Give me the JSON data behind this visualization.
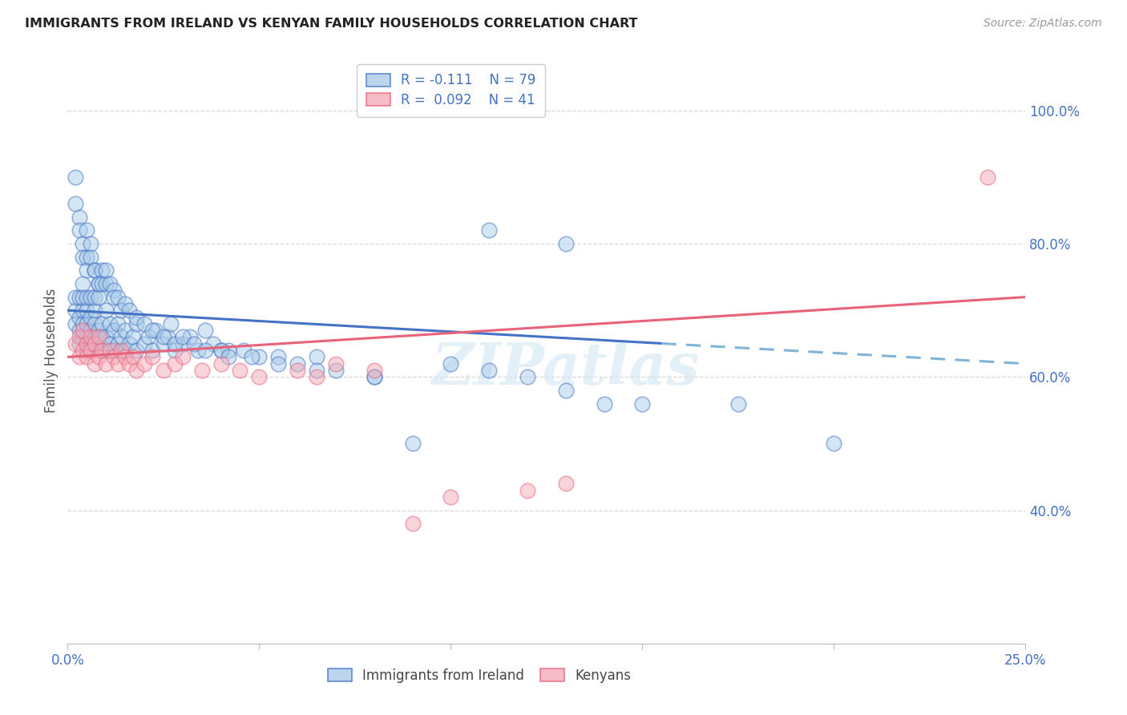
{
  "title": "IMMIGRANTS FROM IRELAND VS KENYAN FAMILY HOUSEHOLDS CORRELATION CHART",
  "source": "Source: ZipAtlas.com",
  "ylabel": "Family Households",
  "xlim": [
    0.0,
    0.25
  ],
  "ylim": [
    0.2,
    1.08
  ],
  "color_blue": "#aacce8",
  "color_pink": "#f4aab8",
  "trendline_blue_solid": "#4472c4",
  "trendline_blue_dashed": "#7fb3d8",
  "trendline_pink": "#e8637a",
  "background": "#ffffff",
  "watermark": "ZIPatlas",
  "grid_color": "#d8d8d8",
  "axis_color": "#4472c4",
  "ireland_x": [
    0.002,
    0.002,
    0.002,
    0.003,
    0.003,
    0.003,
    0.003,
    0.004,
    0.004,
    0.004,
    0.004,
    0.004,
    0.005,
    0.005,
    0.005,
    0.005,
    0.005,
    0.006,
    0.006,
    0.006,
    0.006,
    0.007,
    0.007,
    0.007,
    0.007,
    0.008,
    0.008,
    0.008,
    0.009,
    0.009,
    0.01,
    0.01,
    0.01,
    0.011,
    0.011,
    0.012,
    0.012,
    0.013,
    0.013,
    0.014,
    0.015,
    0.015,
    0.016,
    0.017,
    0.018,
    0.018,
    0.02,
    0.021,
    0.022,
    0.023,
    0.025,
    0.026,
    0.027,
    0.028,
    0.03,
    0.032,
    0.034,
    0.036,
    0.038,
    0.04,
    0.042,
    0.046,
    0.05,
    0.055,
    0.06,
    0.065,
    0.07,
    0.08,
    0.09,
    0.1,
    0.11,
    0.12,
    0.13,
    0.14,
    0.15,
    0.175,
    0.2,
    0.11,
    0.13
  ],
  "ireland_y": [
    0.68,
    0.7,
    0.72,
    0.65,
    0.67,
    0.69,
    0.72,
    0.66,
    0.68,
    0.7,
    0.72,
    0.74,
    0.64,
    0.66,
    0.68,
    0.7,
    0.72,
    0.65,
    0.67,
    0.69,
    0.72,
    0.66,
    0.68,
    0.7,
    0.72,
    0.65,
    0.67,
    0.72,
    0.66,
    0.68,
    0.64,
    0.66,
    0.7,
    0.65,
    0.68,
    0.64,
    0.67,
    0.65,
    0.68,
    0.66,
    0.64,
    0.67,
    0.65,
    0.66,
    0.64,
    0.68,
    0.65,
    0.66,
    0.64,
    0.67,
    0.65,
    0.66,
    0.68,
    0.64,
    0.65,
    0.66,
    0.64,
    0.67,
    0.65,
    0.64,
    0.64,
    0.64,
    0.63,
    0.63,
    0.62,
    0.63,
    0.61,
    0.6,
    0.5,
    0.62,
    0.61,
    0.6,
    0.58,
    0.56,
    0.56,
    0.56,
    0.5,
    0.82,
    0.8
  ],
  "ireland_y_high": [
    0.86,
    0.9,
    0.84,
    0.82,
    0.8,
    0.78,
    0.82,
    0.78,
    0.76,
    0.8,
    0.78,
    0.76,
    0.76,
    0.74,
    0.74,
    0.76,
    0.74,
    0.74,
    0.76,
    0.74,
    0.73,
    0.72,
    0.72,
    0.7,
    0.71,
    0.7,
    0.69,
    0.68,
    0.67,
    0.66,
    0.65,
    0.66,
    0.65,
    0.64,
    0.64,
    0.63,
    0.63,
    0.62,
    0.61,
    0.6
  ],
  "ireland_x_high": [
    0.002,
    0.002,
    0.003,
    0.003,
    0.004,
    0.004,
    0.005,
    0.005,
    0.005,
    0.006,
    0.006,
    0.007,
    0.007,
    0.008,
    0.008,
    0.009,
    0.009,
    0.01,
    0.01,
    0.011,
    0.012,
    0.012,
    0.013,
    0.014,
    0.015,
    0.016,
    0.018,
    0.02,
    0.022,
    0.025,
    0.028,
    0.03,
    0.033,
    0.036,
    0.04,
    0.042,
    0.048,
    0.055,
    0.065,
    0.08
  ],
  "kenya_x": [
    0.002,
    0.003,
    0.003,
    0.004,
    0.004,
    0.005,
    0.005,
    0.006,
    0.006,
    0.007,
    0.007,
    0.008,
    0.008,
    0.009,
    0.01,
    0.011,
    0.012,
    0.013,
    0.014,
    0.015,
    0.016,
    0.017,
    0.018,
    0.02,
    0.022,
    0.025,
    0.028,
    0.03,
    0.035,
    0.04,
    0.045,
    0.05,
    0.06,
    0.065,
    0.07,
    0.08,
    0.09,
    0.1,
    0.12,
    0.13,
    0.24
  ],
  "kenya_y": [
    0.65,
    0.66,
    0.63,
    0.64,
    0.67,
    0.65,
    0.63,
    0.66,
    0.64,
    0.62,
    0.65,
    0.63,
    0.66,
    0.64,
    0.62,
    0.64,
    0.63,
    0.62,
    0.64,
    0.63,
    0.62,
    0.63,
    0.61,
    0.62,
    0.63,
    0.61,
    0.62,
    0.63,
    0.61,
    0.62,
    0.61,
    0.6,
    0.61,
    0.6,
    0.62,
    0.61,
    0.38,
    0.42,
    0.43,
    0.44,
    0.9
  ],
  "trendline_blue_x0": 0.0,
  "trendline_blue_y0": 0.7,
  "trendline_blue_x1": 0.25,
  "trendline_blue_y1": 0.62,
  "trendline_blue_solid_end": 0.155,
  "trendline_pink_x0": 0.0,
  "trendline_pink_y0": 0.63,
  "trendline_pink_x1": 0.25,
  "trendline_pink_y1": 0.72
}
